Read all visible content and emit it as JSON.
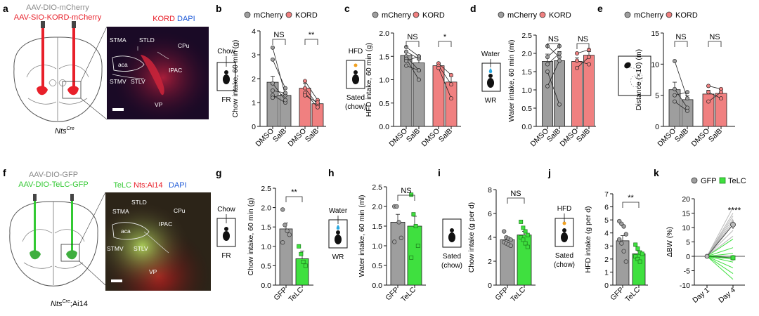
{
  "colors": {
    "mcherry": "#9e9e9e",
    "kord": "#f08080",
    "gfp": "#9e9e9e",
    "telc": "#3fe03f",
    "label_red": "#e8202a",
    "label_green": "#33c933",
    "label_gray": "#8a8a8a"
  },
  "panel_a": {
    "letter": "a",
    "virus1": "AAV-DIO-mCherry",
    "virus2": "AAV-SIO-KORD-mCherry",
    "genotype": "Nts",
    "genotype_sup": "Cre",
    "micro_title_1": "KORD",
    "micro_title_2": "DAPI",
    "regions": [
      "STMA",
      "STLD",
      "CPu",
      "aca",
      "IPAC",
      "STMV",
      "STLV",
      "VP"
    ]
  },
  "panel_f": {
    "letter": "f",
    "virus1": "AAV-DIO-GFP",
    "virus2": "AAV-DIO-TeLC-GFP",
    "genotype": "Nts",
    "genotype_sup": "Cre",
    "genotype_suffix": ";Ai14",
    "micro_title_1": "TeLC",
    "micro_title_2": "Nts:Ai14",
    "micro_title_3": "DAPI",
    "regions": [
      "STLD",
      "STMA",
      "CPu",
      "aca",
      "IPAC",
      "STMV",
      "STLV",
      "VP"
    ]
  },
  "legends": {
    "mcherry": "mCherry",
    "kord": "KORD",
    "gfp": "GFP",
    "telc": "TeLC"
  },
  "icons": {
    "b": {
      "top": "Chow",
      "bottom": "FR"
    },
    "c": {
      "top": "HFD",
      "bottom1": "Sated",
      "bottom2": "(chow)"
    },
    "d": {
      "top": "Water",
      "bottom": "WR"
    },
    "g": {
      "top": "Chow",
      "bottom": "FR"
    },
    "h": {
      "top": "Water",
      "bottom": "WR"
    },
    "i": {
      "bottom1": "Sated",
      "bottom2": "(chow)"
    },
    "j": {
      "top": "HFD",
      "bottom1": "Sated",
      "bottom2": "(chow)"
    }
  },
  "chart_data": [
    {
      "panel": "b",
      "type": "bar",
      "ylabel": "Chow intake, 60 min (g)",
      "ylim": [
        0,
        4
      ],
      "yticks": [
        0,
        1,
        2,
        3,
        4
      ],
      "categories": [
        "DMSO",
        "SalB",
        "DMSO",
        "SalB"
      ],
      "groups": [
        "mCherry",
        "mCherry",
        "KORD",
        "KORD"
      ],
      "values": [
        1.85,
        1.3,
        1.6,
        0.95
      ],
      "errors": [
        0.25,
        0.1,
        0.2,
        0.12
      ],
      "paired": [
        [
          3.3,
          1.3
        ],
        [
          2.8,
          1.6
        ],
        [
          1.5,
          1.4
        ],
        [
          1.3,
          1.0
        ],
        [
          1.2,
          1.4
        ],
        [
          1.8,
          1.1
        ]
      ],
      "paired2": [
        [
          1.9,
          1.1
        ],
        [
          1.6,
          0.9
        ],
        [
          1.4,
          0.8
        ],
        [
          1.3,
          1.0
        ]
      ],
      "significance": [
        "NS",
        "**"
      ]
    },
    {
      "panel": "c",
      "type": "bar",
      "ylabel": "HFD intake, 60 min (g)",
      "ylim": [
        0,
        2.0
      ],
      "yticks": [
        0,
        0.5,
        1.0,
        1.5,
        2.0
      ],
      "categories": [
        "DMSO",
        "SalB",
        "DMSO",
        "SalB"
      ],
      "groups": [
        "mCherry",
        "mCherry",
        "KORD",
        "KORD"
      ],
      "values": [
        1.52,
        1.36,
        1.3,
        0.95
      ],
      "errors": [
        0.07,
        0.07,
        0.05,
        0.12
      ],
      "paired": [
        [
          1.7,
          1.5
        ],
        [
          1.6,
          1.45
        ],
        [
          1.5,
          1.2
        ],
        [
          1.45,
          1.0
        ],
        [
          1.4,
          1.5
        ],
        [
          1.3,
          1.2
        ]
      ],
      "paired2": [
        [
          1.35,
          1.1
        ],
        [
          1.3,
          0.9
        ],
        [
          1.25,
          0.6
        ]
      ],
      "significance": [
        "NS",
        "*"
      ]
    },
    {
      "panel": "d",
      "type": "bar",
      "ylabel": "Water intake, 60 min (ml)",
      "ylim": [
        0,
        2.5
      ],
      "yticks": [
        0,
        0.5,
        1.0,
        1.5,
        2.0,
        2.5
      ],
      "categories": [
        "DMSO",
        "SalB",
        "DMSO",
        "SalB"
      ],
      "groups": [
        "mCherry",
        "mCherry",
        "KORD",
        "KORD"
      ],
      "values": [
        1.78,
        1.8,
        1.78,
        1.95
      ],
      "errors": [
        0.2,
        0.25,
        0.1,
        0.1
      ],
      "paired": [
        [
          2.2,
          1.9
        ],
        [
          1.9,
          2.2
        ],
        [
          1.7,
          2.0
        ],
        [
          1.5,
          0.6
        ],
        [
          1.1,
          1.8
        ]
      ],
      "paired2": [
        [
          2.0,
          2.1
        ],
        [
          1.8,
          1.7
        ],
        [
          1.6,
          1.9
        ]
      ],
      "significance": [
        "NS",
        "NS"
      ]
    },
    {
      "panel": "e",
      "type": "bar",
      "ylabel": "Distance (×10) (m)",
      "ylim": [
        0,
        15
      ],
      "yticks": [
        0,
        5,
        10,
        15
      ],
      "categories": [
        "DMSO",
        "SalB",
        "DMSO",
        "SalB"
      ],
      "groups": [
        "mCherry",
        "mCherry",
        "KORD",
        "KORD"
      ],
      "values": [
        5.9,
        4.3,
        5.2,
        5.3
      ],
      "errors": [
        1.2,
        0.6,
        0.6,
        0.6
      ],
      "paired": [
        [
          10.5,
          4.5
        ],
        [
          6.0,
          3.0
        ],
        [
          5.0,
          5.5
        ],
        [
          4.0,
          2.5
        ]
      ],
      "paired2": [
        [
          6.5,
          6.0
        ],
        [
          5.5,
          4.5
        ],
        [
          4.0,
          5.5
        ]
      ],
      "significance": [
        "NS",
        "NS"
      ]
    },
    {
      "panel": "g",
      "type": "bar",
      "ylabel": "Chow intake, 60 min (g)",
      "ylim": [
        0,
        2.5
      ],
      "yticks": [
        0,
        0.5,
        1.0,
        1.5,
        2.0,
        2.5
      ],
      "categories": [
        "GFP",
        "TeLC"
      ],
      "values": [
        1.45,
        0.68
      ],
      "errors": [
        0.15,
        0.2
      ],
      "points": [
        [
          1.95,
          1.55,
          1.4,
          1.3,
          1.1
        ],
        [
          1.0,
          0.8,
          0.6,
          0.5
        ]
      ],
      "significance": [
        "**"
      ]
    },
    {
      "panel": "h",
      "type": "bar",
      "ylabel": "Water intake, 60 min (ml)",
      "ylim": [
        0,
        2.5
      ],
      "yticks": [
        0,
        0.5,
        1.0,
        1.5,
        2.0,
        2.5
      ],
      "categories": [
        "GFP",
        "TeLC"
      ],
      "values": [
        1.6,
        1.5
      ],
      "errors": [
        0.2,
        0.25
      ],
      "points": [
        [
          2.0,
          2.0,
          1.6,
          1.2,
          1.1
        ],
        [
          2.3,
          1.8,
          1.5,
          1.0,
          0.7
        ]
      ],
      "significance": [
        "NS"
      ]
    },
    {
      "panel": "i",
      "type": "bar",
      "ylabel": "Chow intake (g per d)",
      "ylim": [
        0,
        8
      ],
      "yticks": [
        0,
        2,
        4,
        6,
        8
      ],
      "categories": [
        "GFP",
        "TeLC"
      ],
      "values": [
        3.8,
        4.2
      ],
      "errors": [
        0.2,
        0.3
      ],
      "points": [
        [
          4.5,
          4.0,
          3.9,
          3.8,
          3.6,
          3.5,
          3.4,
          3.3
        ],
        [
          5.3,
          4.8,
          4.5,
          4.2,
          4.0,
          3.8,
          3.5,
          3.2
        ]
      ],
      "significance": [
        "NS"
      ]
    },
    {
      "panel": "j",
      "type": "bar",
      "ylabel": "HFD intake (g per d)",
      "ylim": [
        0,
        7
      ],
      "yticks": [
        0,
        1,
        2,
        3,
        4,
        5,
        6,
        7
      ],
      "categories": [
        "GFP",
        "TeLC"
      ],
      "values": [
        3.4,
        2.4
      ],
      "errors": [
        0.4,
        0.2
      ],
      "points": [
        [
          4.9,
          4.7,
          4.5,
          3.9,
          3.5,
          3.2,
          2.6,
          1.8
        ],
        [
          3.1,
          2.8,
          2.5,
          2.4,
          2.2,
          2.0,
          1.8
        ]
      ],
      "significance": [
        "**"
      ]
    },
    {
      "panel": "k",
      "type": "line",
      "ylabel": "ΔBW (%)",
      "ylim": [
        -10,
        20
      ],
      "yticks": [
        -10,
        -5,
        0,
        5,
        10,
        15,
        20
      ],
      "categories": [
        "Day 1",
        "Day 4"
      ],
      "series": [
        {
          "name": "GFP",
          "values": [
            0,
            11
          ],
          "error": 1.5,
          "individual": [
            17,
            15,
            14,
            13,
            12,
            11,
            9,
            7
          ]
        },
        {
          "name": "TeLC",
          "values": [
            0,
            -0.5
          ],
          "error": 1.0,
          "individual": [
            6,
            3,
            1,
            -1,
            -2,
            -4,
            -6,
            -8
          ]
        }
      ],
      "significance": "****"
    }
  ]
}
